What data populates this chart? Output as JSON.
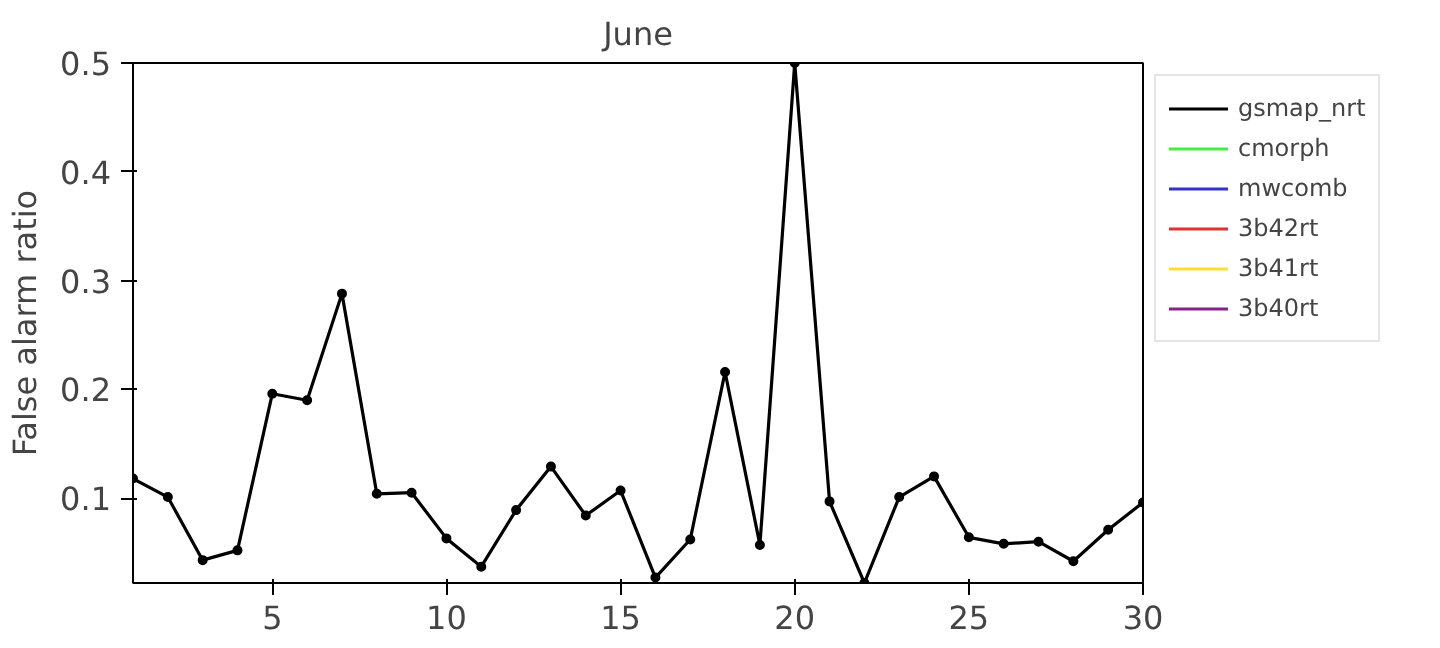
{
  "chart_data": {
    "type": "line",
    "title": "June",
    "ylabel": "False alarm ratio",
    "x": [
      1,
      2,
      3,
      4,
      5,
      6,
      7,
      8,
      9,
      10,
      11,
      12,
      13,
      14,
      15,
      16,
      17,
      18,
      19,
      20,
      21,
      22,
      23,
      24,
      25,
      26,
      27,
      28,
      29,
      30
    ],
    "series": [
      {
        "name": "gsmap_nrt",
        "color": "#000000",
        "values": [
          0.118,
          0.101,
          0.043,
          0.052,
          0.196,
          0.19,
          0.288,
          0.104,
          0.105,
          0.063,
          0.037,
          0.089,
          0.129,
          0.084,
          0.107,
          0.027,
          0.062,
          0.216,
          0.057,
          0.5,
          0.097,
          0.022,
          0.101,
          0.12,
          0.064,
          0.058,
          0.06,
          0.042,
          0.071,
          0.096
        ]
      },
      {
        "name": "cmorph",
        "color": "#44ee44",
        "values": [
          null,
          null,
          null,
          null,
          null,
          null,
          null,
          null,
          null,
          null,
          null,
          null,
          null,
          null,
          null,
          null,
          null,
          null,
          null,
          null,
          null,
          null,
          null,
          null,
          null,
          null,
          null,
          null,
          null,
          null
        ]
      },
      {
        "name": "mwcomb",
        "color": "#3333cc",
        "values": [
          null,
          null,
          null,
          null,
          null,
          null,
          null,
          null,
          null,
          null,
          null,
          null,
          null,
          null,
          null,
          null,
          null,
          null,
          null,
          null,
          null,
          null,
          null,
          null,
          null,
          null,
          null,
          null,
          null,
          null
        ]
      },
      {
        "name": "3b42rt",
        "color": "#dd3333",
        "values": [
          null,
          null,
          null,
          null,
          null,
          null,
          null,
          null,
          null,
          null,
          null,
          null,
          null,
          null,
          null,
          null,
          null,
          null,
          null,
          null,
          null,
          null,
          null,
          null,
          null,
          null,
          null,
          null,
          null,
          null
        ]
      },
      {
        "name": "3b41rt",
        "color": "#ffdd33",
        "values": [
          null,
          null,
          null,
          null,
          null,
          null,
          null,
          null,
          null,
          null,
          null,
          null,
          null,
          null,
          null,
          null,
          null,
          null,
          null,
          null,
          null,
          null,
          null,
          null,
          null,
          null,
          null,
          null,
          null,
          null
        ]
      },
      {
        "name": "3b40rt",
        "color": "#882288",
        "values": [
          null,
          null,
          null,
          null,
          null,
          null,
          null,
          null,
          null,
          null,
          null,
          null,
          null,
          null,
          null,
          null,
          null,
          null,
          null,
          null,
          null,
          null,
          null,
          null,
          null,
          null,
          null,
          null,
          null,
          null
        ]
      }
    ],
    "xlim": [
      1,
      30
    ],
    "xticks": [
      5,
      10,
      15,
      20,
      25,
      30
    ],
    "ylim": [
      0.022,
      0.5
    ],
    "yticks": [
      0.1,
      0.2,
      0.3,
      0.4,
      0.5
    ],
    "grid": false,
    "legend": "top right",
    "marker": "circle",
    "line_style": "solid"
  }
}
